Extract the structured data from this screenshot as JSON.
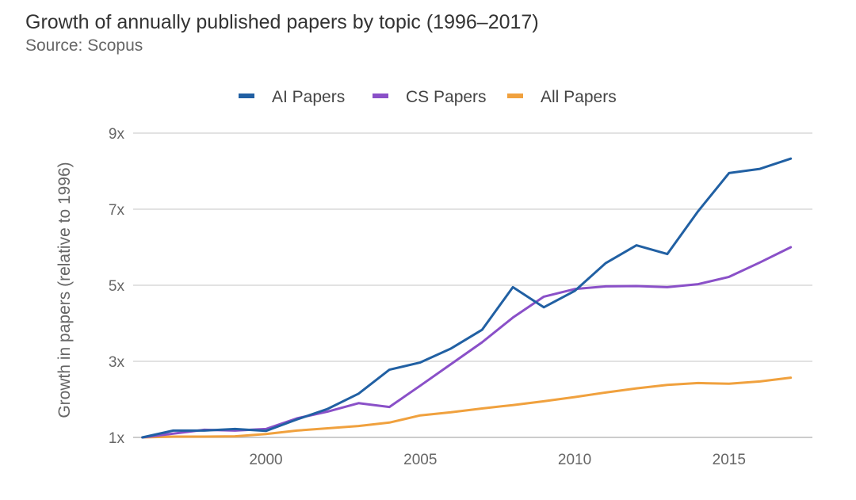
{
  "chart_data": {
    "type": "line",
    "title": "Growth of annually published papers by topic (1996–2017)",
    "subtitle": "Source: Scopus",
    "xlabel": "",
    "ylabel": "Growth in papers (relative to 1996)",
    "x": [
      1996,
      1997,
      1998,
      1999,
      2000,
      2001,
      2002,
      2003,
      2004,
      2005,
      2006,
      2007,
      2008,
      2009,
      2010,
      2011,
      2012,
      2013,
      2014,
      2015,
      2016,
      2017
    ],
    "xticks": [
      2000,
      2005,
      2010,
      2015
    ],
    "xtick_labels": [
      "2000",
      "2005",
      "2010",
      "2015"
    ],
    "xlim": [
      1995.7,
      2017.7
    ],
    "ylim": [
      1,
      9
    ],
    "yticks": [
      1,
      3,
      5,
      7,
      9
    ],
    "ytick_labels": [
      "1x",
      "3x",
      "5x",
      "7x",
      "9x"
    ],
    "grid": true,
    "legend_position": "top-center",
    "series": [
      {
        "name": "AI Papers",
        "color": "#2160a3",
        "values": [
          1.0,
          1.18,
          1.18,
          1.22,
          1.17,
          1.47,
          1.75,
          2.15,
          2.78,
          2.97,
          3.34,
          3.83,
          4.95,
          4.42,
          4.85,
          5.58,
          6.05,
          5.82,
          6.95,
          7.95,
          8.06,
          8.33
        ]
      },
      {
        "name": "CS Papers",
        "color": "#8a50c8",
        "values": [
          1.0,
          1.1,
          1.2,
          1.18,
          1.22,
          1.5,
          1.68,
          1.9,
          1.8,
          2.36,
          2.93,
          3.5,
          4.15,
          4.7,
          4.9,
          4.97,
          4.98,
          4.95,
          5.03,
          5.22,
          5.6,
          6.0
        ]
      },
      {
        "name": "All Papers",
        "color": "#f0a13e",
        "values": [
          1.0,
          1.02,
          1.02,
          1.03,
          1.09,
          1.18,
          1.24,
          1.3,
          1.39,
          1.58,
          1.66,
          1.76,
          1.85,
          1.95,
          2.06,
          2.18,
          2.29,
          2.38,
          2.43,
          2.41,
          2.47,
          2.57
        ]
      }
    ]
  }
}
